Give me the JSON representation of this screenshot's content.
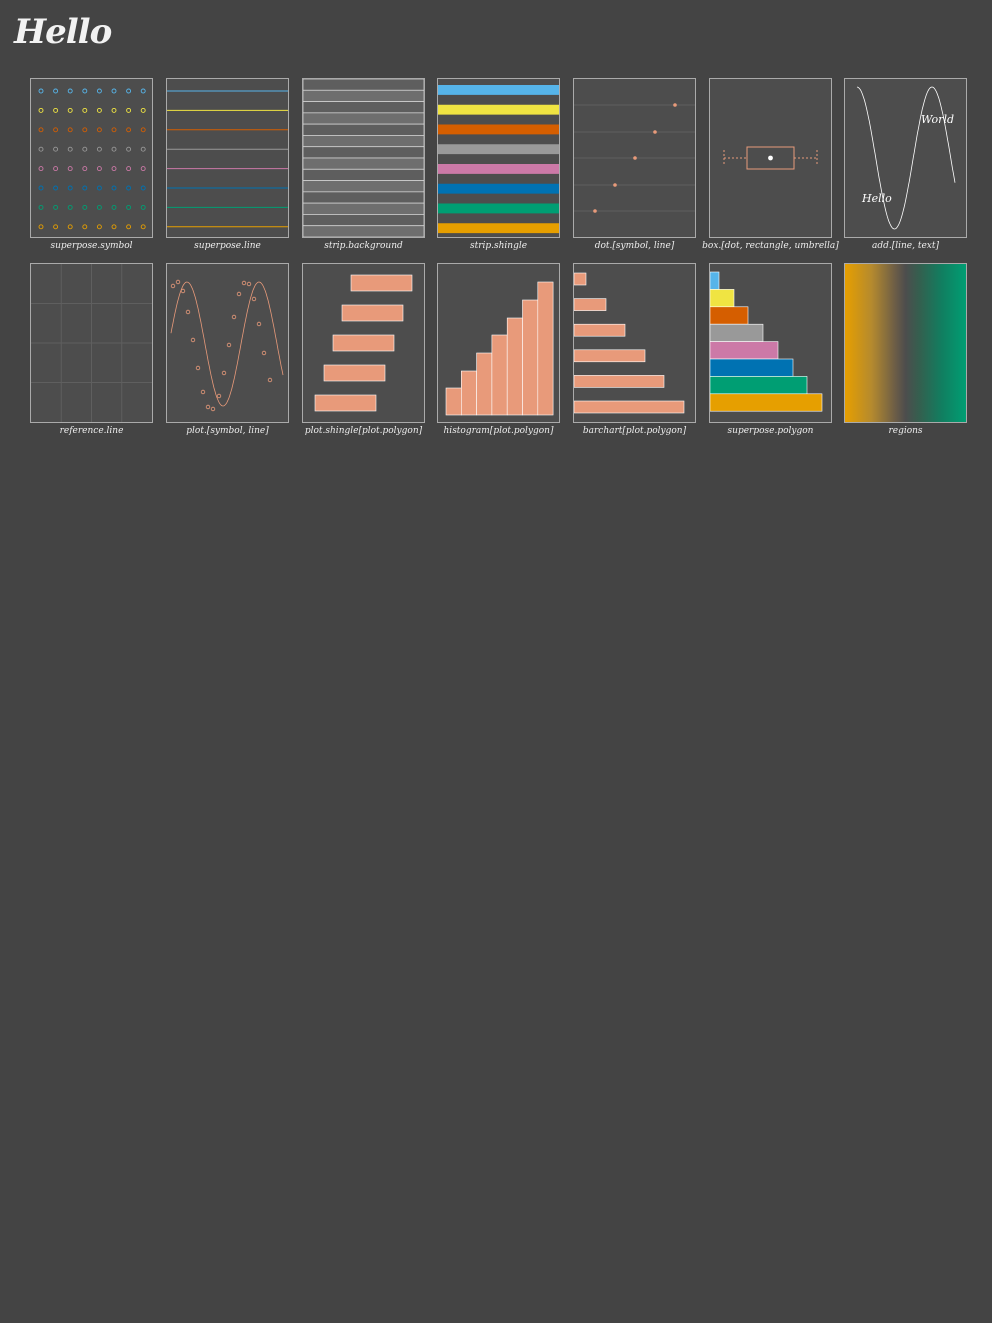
{
  "page": {
    "title": "Hello"
  },
  "palette": [
    "#56b4e9",
    "#f0e442",
    "#d55e00",
    "#999999",
    "#cc79a7",
    "#0072b2",
    "#009e73",
    "#e69f00"
  ],
  "accent": "#e89a7a",
  "panels": [
    {
      "caption": "superpose.symbol"
    },
    {
      "caption": "superpose.line"
    },
    {
      "caption": "strip.background"
    },
    {
      "caption": "strip.shingle"
    },
    {
      "caption": "dot.[symbol, line]"
    },
    {
      "caption": "box.[dot, rectangle, umbrella]"
    },
    {
      "caption": "add.[line, text]"
    },
    {
      "caption": "reference.line"
    },
    {
      "caption": "plot.[symbol, line]"
    },
    {
      "caption": "plot.shingle[plot.polygon]"
    },
    {
      "caption": "histogram[plot.polygon]"
    },
    {
      "caption": "barchart[plot.polygon]"
    },
    {
      "caption": "superpose.polygon"
    },
    {
      "caption": "regions"
    }
  ],
  "text_sample": {
    "word1": "Hello",
    "word2": "World"
  }
}
